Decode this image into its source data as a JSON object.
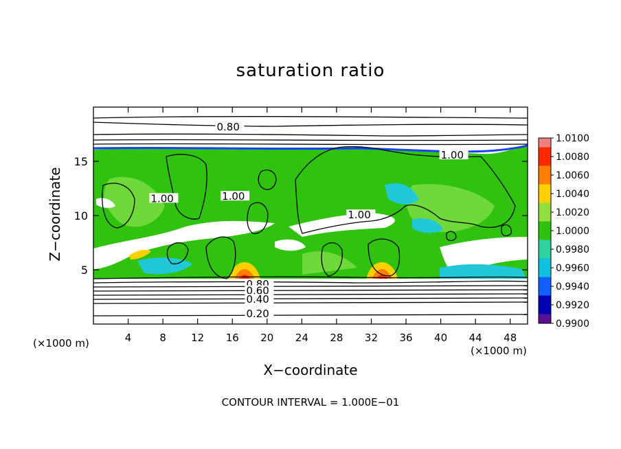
{
  "figure": {
    "title": "saturation ratio",
    "xlabel": "X−coordinate",
    "ylabel": "Z−coordinate",
    "x_unit_left": "(×1000 m)",
    "x_unit_right": "(×1000 m)",
    "contour_interval": "CONTOUR INTERVAL = 1.000E−01"
  },
  "chart_data": {
    "type": "heatmap",
    "title": "saturation ratio",
    "xlabel": "X−coordinate",
    "ylabel": "Z−coordinate",
    "xlim": [
      0,
      50
    ],
    "ylim": [
      0,
      20
    ],
    "x_ticks": [
      4,
      8,
      12,
      16,
      20,
      24,
      28,
      32,
      36,
      40,
      44,
      48
    ],
    "y_ticks": [
      5,
      10,
      15
    ],
    "colorbar": {
      "levels": [
        "1.0100",
        "1.0080",
        "1.0060",
        "1.0040",
        "1.0020",
        "1.0000",
        "0.9980",
        "0.9960",
        "0.9940",
        "0.9920",
        "0.9900"
      ],
      "colors": [
        "#f08080",
        "#ff2a00",
        "#ff7f00",
        "#ffd000",
        "#90e040",
        "#30c010",
        "#30d0a0",
        "#10c0e0",
        "#1060ff",
        "#0000b0",
        "#5a1090"
      ]
    },
    "contour_labels": [
      {
        "text": "0.80",
        "x": 14.2,
        "z": 18.1
      },
      {
        "text": "1.00",
        "x": 40.0,
        "z": 15.5
      },
      {
        "text": "1.00",
        "x": 6.6,
        "z": 11.5
      },
      {
        "text": "1.00",
        "x": 14.8,
        "z": 11.7
      },
      {
        "text": "1.00",
        "x": 29.3,
        "z": 10.0
      },
      {
        "text": "0.80",
        "x": 17.6,
        "z": 3.6
      },
      {
        "text": "0.60",
        "x": 17.6,
        "z": 3.0
      },
      {
        "text": "0.40",
        "x": 17.6,
        "z": 2.2
      },
      {
        "text": "0.20",
        "x": 17.6,
        "z": 0.9
      }
    ],
    "contour_interval": 0.1
  }
}
